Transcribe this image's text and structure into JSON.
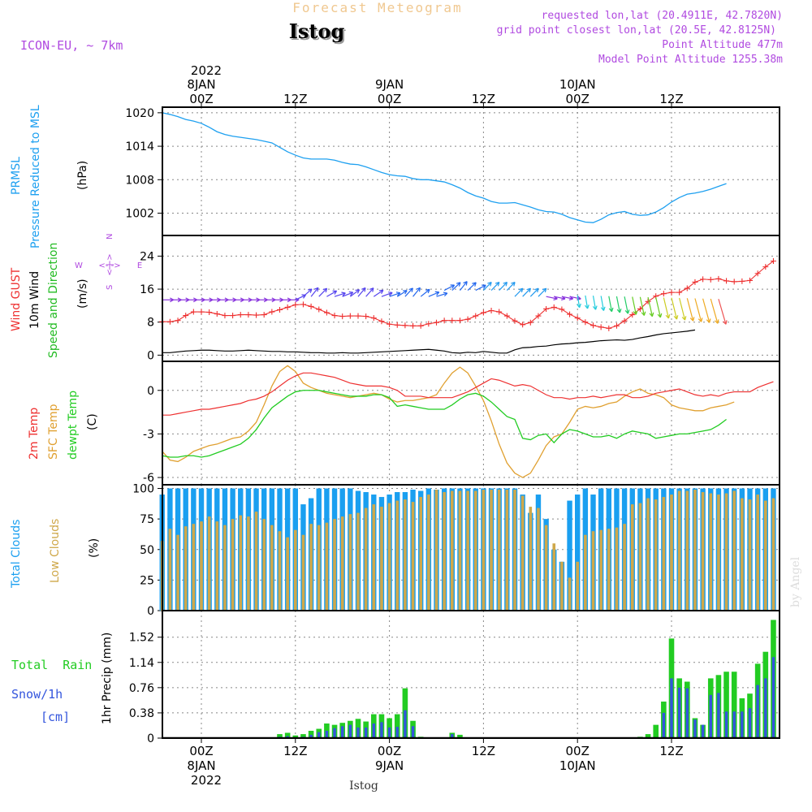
{
  "header": {
    "title_top": "Forecast Meteogram",
    "location": "Istog",
    "model": "ICON-EU, ~ 7km",
    "requested": "requested lon,lat (20.4911E, 42.7820N)",
    "grid_point": "grid point closest lon,lat (20.5E, 42.8125N)",
    "point_altitude": "Point Altitude 477m",
    "model_altitude": "Model Point Altitude 1255.38m"
  },
  "footer": {
    "location": "Istog",
    "watermark": "by Angel"
  },
  "colors": {
    "pressure": "#1ea0f0",
    "gust": "#ee3030",
    "wind": "#000000",
    "dir": "#22bb22",
    "temp2m": "#ee3030",
    "sfc": "#e0a030",
    "dew": "#22cc22",
    "total_cloud": "#1a9ff0",
    "low_cloud": "#cfa84a",
    "rain": "#22cc22",
    "snow": "#3355dd",
    "label_purple": "#b04ae0",
    "grid": "#888888"
  },
  "time_axis": {
    "top_year": "2022",
    "top_labels": [
      {
        "hour": 0,
        "line1": "8JAN",
        "line2": "00Z"
      },
      {
        "hour": 12,
        "line1": "",
        "line2": "12Z"
      },
      {
        "hour": 24,
        "line1": "9JAN",
        "line2": "00Z"
      },
      {
        "hour": 36,
        "line1": "",
        "line2": "12Z"
      },
      {
        "hour": 48,
        "line1": "10JAN",
        "line2": "00Z"
      },
      {
        "hour": 60,
        "line1": "",
        "line2": "12Z"
      }
    ],
    "bottom_year": "2022",
    "bottom_labels": [
      {
        "hour": 0,
        "line1": "00Z",
        "line2": "8JAN"
      },
      {
        "hour": 12,
        "line1": "12Z",
        "line2": ""
      },
      {
        "hour": 24,
        "line1": "00Z",
        "line2": "9JAN"
      },
      {
        "hour": 36,
        "line1": "12Z",
        "line2": ""
      },
      {
        "hour": 48,
        "line1": "00Z",
        "line2": "10JAN"
      },
      {
        "hour": 60,
        "line1": "12Z",
        "line2": ""
      }
    ]
  },
  "panel_labels": {
    "pressure": {
      "name1": "PRMSL",
      "name2": "Pressure Reduced to MSL",
      "unit": "(hPa)"
    },
    "wind": {
      "gust": "Wind GUST",
      "wind": "10m Wind",
      "dir": "Speed and Direction",
      "unit": "(m/s)",
      "compass_n": "N",
      "compass_s": "S",
      "compass_w": "W",
      "compass_e": "E",
      "compass_mid": "<-|->"
    },
    "temp": {
      "t2m": "2m Temp",
      "sfc": "SFC Temp",
      "dew": "dewpt Temp",
      "unit": "(C)"
    },
    "cloud": {
      "total": "Total Clouds",
      "low": "Low Clouds",
      "unit": "(%)"
    },
    "precip": {
      "rain": "Total  Rain",
      "snow": "Snow/1h",
      "snow_unit": "[cm]",
      "axis": "1hr Precip (mm)"
    }
  },
  "chart_data": [
    {
      "type": "line",
      "id": "pressure",
      "title": "PRMSL Pressure Reduced to MSL",
      "ylabel": "(hPa)",
      "ylim": [
        998,
        1021
      ],
      "yticks": [
        "1020",
        "1014",
        "1008",
        "1002"
      ],
      "x_start": -5,
      "x_step": 1,
      "series": [
        {
          "name": "PRMSL",
          "values": [
            1020,
            1019.7,
            1019.3,
            1018.8,
            1018.5,
            1018.1,
            1017.4,
            1016.6,
            1016.1,
            1015.8,
            1015.6,
            1015.4,
            1015.2,
            1014.9,
            1014.6,
            1013.8,
            1013,
            1012.4,
            1011.9,
            1011.7,
            1011.7,
            1011.7,
            1011.5,
            1011.1,
            1010.8,
            1010.7,
            1010.3,
            1009.8,
            1009.3,
            1008.9,
            1008.7,
            1008.6,
            1008.2,
            1008,
            1008,
            1007.8,
            1007.6,
            1007.1,
            1006.5,
            1005.7,
            1005.1,
            1004.7,
            1004.1,
            1003.8,
            1003.8,
            1003.9,
            1003.5,
            1003.1,
            1002.6,
            1002.3,
            1002.2,
            1001.8,
            1001.2,
            1000.8,
            1000.4,
            1000.3,
            1000.9,
            1001.7,
            1002.1,
            1002.3,
            1001.8,
            1001.6,
            1001.7,
            1002.2,
            1003,
            1004,
            1004.8,
            1005.4,
            1005.6,
            1005.9,
            1006.3,
            1006.8,
            1007.3
          ]
        }
      ]
    },
    {
      "type": "line",
      "id": "wind",
      "title": "Wind GUST / 10m Wind Speed and Direction",
      "ylabel": "(m/s)",
      "ylim": [
        -1.5,
        29
      ],
      "yticks": [
        "24",
        "16",
        "8",
        "0"
      ],
      "x_start": -5,
      "x_step": 1,
      "series": [
        {
          "name": "Wind GUST",
          "values": [
            8.1,
            8.1,
            8.4,
            9.6,
            10.5,
            10.5,
            10.4,
            10,
            9.6,
            9.6,
            9.8,
            9.8,
            9.7,
            9.8,
            10.5,
            11,
            11.6,
            12.2,
            12.3,
            11.8,
            11.1,
            10.3,
            9.6,
            9.4,
            9.5,
            9.5,
            9.4,
            9,
            8.2,
            7.5,
            7.3,
            7.2,
            7.1,
            7.1,
            7.6,
            7.9,
            8.4,
            8.4,
            8.4,
            8.7,
            9.5,
            10.3,
            10.8,
            10.5,
            9.5,
            8.3,
            7.4,
            7.9,
            9.5,
            11.2,
            11.6,
            11.1,
            9.9,
            9,
            8,
            7.2,
            6.8,
            6.5,
            7.1,
            8.3,
            9.8,
            11.2,
            13,
            14.3,
            14.9,
            15.2,
            15.2,
            16.2,
            17.7,
            18.4,
            18.3,
            18.5,
            18,
            17.8,
            17.9,
            18.1,
            19.8,
            21.4,
            22.8,
            23.7,
            23.9,
            24.4,
            25.7,
            26.7
          ]
        },
        {
          "name": "10m Wind",
          "values": [
            0.6,
            0.6,
            0.8,
            1,
            1.1,
            1.2,
            1.2,
            1.1,
            1,
            1,
            1.1,
            1.2,
            1.1,
            1,
            0.9,
            0.9,
            0.8,
            0.8,
            0.7,
            0.6,
            0.6,
            0.5,
            0.5,
            0.6,
            0.5,
            0.5,
            0.6,
            0.7,
            0.8,
            0.9,
            1,
            1.1,
            1.2,
            1.3,
            1.4,
            1.2,
            1,
            0.6,
            0.5,
            0.7,
            0.6,
            0.9,
            0.7,
            0.5,
            0.5,
            1.3,
            1.8,
            1.9,
            2.1,
            2.2,
            2.5,
            2.7,
            2.8,
            3,
            3.1,
            3.3,
            3.5,
            3.6,
            3.7,
            3.6,
            3.8,
            4.2,
            4.5,
            4.9,
            5.2,
            5.4,
            5.6,
            5.8,
            6.1
          ]
        }
      ],
      "direction_barbs": "arrows colour-coded by time: purple, blue, cyan, green, yellow, red"
    },
    {
      "type": "line",
      "id": "temp",
      "title": "2m Temp / SFC Temp / dewpt Temp",
      "ylabel": "(C)",
      "ylim": [
        -6.5,
        2
      ],
      "yticks": [
        "0",
        "-3",
        "-6"
      ],
      "x_start": -5,
      "x_step": 1,
      "series": [
        {
          "name": "2m Temp",
          "values": [
            -1.7,
            -1.7,
            -1.6,
            -1.5,
            -1.4,
            -1.3,
            -1.3,
            -1.2,
            -1.1,
            -1,
            -0.9,
            -0.7,
            -0.6,
            -0.4,
            -0.1,
            0.3,
            0.7,
            1,
            1.2,
            1.2,
            1.1,
            1,
            0.9,
            0.7,
            0.5,
            0.4,
            0.3,
            0.3,
            0.3,
            0.2,
            0,
            -0.4,
            -0.4,
            -0.4,
            -0.5,
            -0.5,
            -0.5,
            -0.5,
            -0.3,
            -0.1,
            0.2,
            0.5,
            0.8,
            0.7,
            0.5,
            0.3,
            0.4,
            0.3,
            0,
            -0.3,
            -0.5,
            -0.5,
            -0.6,
            -0.5,
            -0.5,
            -0.4,
            -0.5,
            -0.4,
            -0.3,
            -0.3,
            -0.5,
            -0.5,
            -0.4,
            -0.2,
            -0.1,
            0,
            0.1,
            -0.1,
            -0.3,
            -0.4,
            -0.3,
            -0.4,
            -0.2,
            -0.1,
            -0.1,
            -0.1,
            0.2,
            0.4,
            0.6,
            0.8,
            0.9
          ]
        },
        {
          "name": "SFC Temp",
          "values": [
            -4.2,
            -4.8,
            -4.9,
            -4.6,
            -4.2,
            -4,
            -3.8,
            -3.7,
            -3.5,
            -3.3,
            -3.2,
            -2.8,
            -2.2,
            -1,
            0.3,
            1.3,
            1.7,
            1.3,
            0.5,
            0.2,
            0,
            -0.2,
            -0.3,
            -0.4,
            -0.5,
            -0.4,
            -0.3,
            -0.2,
            -0.3,
            -0.6,
            -0.8,
            -0.7,
            -0.7,
            -0.6,
            -0.5,
            -0.3,
            0.5,
            1.2,
            1.6,
            1.2,
            0.3,
            -0.7,
            -2.1,
            -3.7,
            -5,
            -5.7,
            -6,
            -5.7,
            -4.8,
            -3.8,
            -3.2,
            -3,
            -2.2,
            -1.3,
            -1.1,
            -1.2,
            -1.1,
            -0.9,
            -0.8,
            -0.4,
            -0.1,
            0.1,
            -0.2,
            -0.3,
            -0.5,
            -1,
            -1.2,
            -1.3,
            -1.4,
            -1.4,
            -1.2,
            -1.1,
            -1,
            -0.8
          ]
        },
        {
          "name": "dewpt Temp",
          "values": [
            -4.5,
            -4.6,
            -4.6,
            -4.5,
            -4.5,
            -4.6,
            -4.5,
            -4.3,
            -4.1,
            -3.9,
            -3.7,
            -3.3,
            -2.7,
            -1.9,
            -1.2,
            -0.8,
            -0.4,
            -0.1,
            0,
            0,
            0,
            -0.1,
            -0.2,
            -0.3,
            -0.4,
            -0.4,
            -0.4,
            -0.3,
            -0.3,
            -0.5,
            -1.1,
            -1,
            -1.1,
            -1.2,
            -1.3,
            -1.3,
            -1.3,
            -1,
            -0.6,
            -0.3,
            -0.2,
            -0.4,
            -0.8,
            -1.3,
            -1.8,
            -2,
            -3.3,
            -3.4,
            -3.1,
            -3,
            -3.6,
            -3,
            -2.7,
            -2.8,
            -3,
            -3.2,
            -3.2,
            -3.1,
            -3.3,
            -3,
            -2.8,
            -2.9,
            -3,
            -3.3,
            -3.2,
            -3.1,
            -3,
            -3,
            -2.9,
            -2.8,
            -2.7,
            -2.4,
            -2
          ]
        }
      ]
    },
    {
      "type": "bar",
      "id": "clouds",
      "title": "Total Clouds / Low Clouds",
      "ylabel": "(%)",
      "ylim": [
        0,
        103
      ],
      "yticks": [
        "100",
        "75",
        "50",
        "25",
        "0"
      ],
      "x_start": -5,
      "x_step": 1,
      "series": [
        {
          "name": "Total Clouds",
          "values": [
            95,
            100,
            100,
            100,
            100,
            100,
            100,
            100,
            100,
            100,
            100,
            100,
            100,
            100,
            100,
            100,
            100,
            100,
            87,
            92,
            100,
            100,
            100,
            100,
            100,
            98,
            97,
            95,
            93,
            95,
            97,
            97,
            99,
            98,
            100,
            99,
            100,
            100,
            100,
            100,
            100,
            100,
            100,
            100,
            100,
            100,
            95,
            80,
            95,
            75,
            50,
            40,
            90,
            95,
            100,
            95,
            100,
            100,
            100,
            100,
            100,
            100,
            100,
            100,
            100,
            100,
            100,
            100,
            100,
            100,
            100,
            100,
            100,
            100,
            100,
            100,
            100,
            100,
            100,
            100,
            100,
            100,
            100,
            100,
            100
          ]
        },
        {
          "name": "Low Clouds",
          "values": [
            57,
            67,
            62,
            69,
            71,
            73,
            77,
            73,
            70,
            75,
            78,
            77,
            81,
            75,
            70,
            65,
            60,
            66,
            62,
            71,
            70,
            72,
            75,
            77,
            79,
            80,
            84,
            87,
            85,
            88,
            90,
            91,
            89,
            93,
            95,
            99,
            97,
            98,
            98,
            98,
            98,
            99,
            99,
            99,
            99,
            99,
            94,
            85,
            84,
            70,
            55,
            40,
            27,
            40,
            62,
            65,
            66,
            67,
            68,
            71,
            87,
            88,
            92,
            91,
            93,
            95,
            98,
            98,
            99,
            97,
            96,
            95,
            96,
            98,
            92,
            91,
            95,
            90,
            92,
            95,
            97,
            97,
            93,
            94,
            96,
            100
          ]
        }
      ]
    },
    {
      "type": "bar",
      "id": "precip",
      "title": "1hr Precip (mm)",
      "ylabel": "1hr Precip (mm)",
      "ylim": [
        0,
        1.92
      ],
      "yticks": [
        "1.52",
        "1.14",
        "0.76",
        "0.38",
        "0"
      ],
      "x_start": -5,
      "x_step": 1,
      "series": [
        {
          "name": "Total Rain",
          "values": [
            0,
            0,
            0,
            0,
            0,
            0,
            0,
            0,
            0,
            0,
            0,
            0,
            0,
            0,
            0,
            0.06,
            0.08,
            0.04,
            0.06,
            0.11,
            0.14,
            0.22,
            0.2,
            0.23,
            0.26,
            0.29,
            0.25,
            0.36,
            0.36,
            0.3,
            0.36,
            0.75,
            0.26,
            0.02,
            0,
            0,
            0,
            0.08,
            0.05,
            0,
            0,
            0,
            0,
            0,
            0,
            0,
            0,
            0,
            0,
            0,
            0,
            0,
            0,
            0,
            0,
            0,
            0,
            0,
            0,
            0,
            0,
            0.02,
            0.06,
            0.2,
            0.55,
            1.5,
            0.9,
            0.85,
            0.3,
            0.2,
            0.9,
            0.95,
            1,
            1,
            0.6,
            0.67,
            1.12,
            1.3,
            1.78,
            1.15,
            1.15
          ]
        },
        {
          "name": "Snow/1h",
          "values": [
            0,
            0,
            0,
            0,
            0,
            0,
            0,
            0,
            0,
            0,
            0,
            0,
            0,
            0,
            0,
            0.02,
            0.03,
            0.01,
            0.02,
            0.05,
            0.09,
            0.11,
            0.15,
            0.18,
            0.2,
            0.16,
            0.16,
            0.22,
            0.24,
            0.16,
            0.17,
            0.42,
            0.18,
            0,
            0,
            0,
            0,
            0.06,
            0,
            0,
            0,
            0,
            0,
            0,
            0,
            0,
            0,
            0,
            0,
            0,
            0,
            0,
            0,
            0,
            0,
            0,
            0,
            0,
            0,
            0,
            0,
            0,
            0,
            0.01,
            0.38,
            0.9,
            0.76,
            0.75,
            0.28,
            0.2,
            0.65,
            0.68,
            0.4,
            0.4,
            0.4,
            0.45,
            0.8,
            0.9,
            1.22,
            0.7,
            0.71
          ]
        }
      ]
    }
  ]
}
